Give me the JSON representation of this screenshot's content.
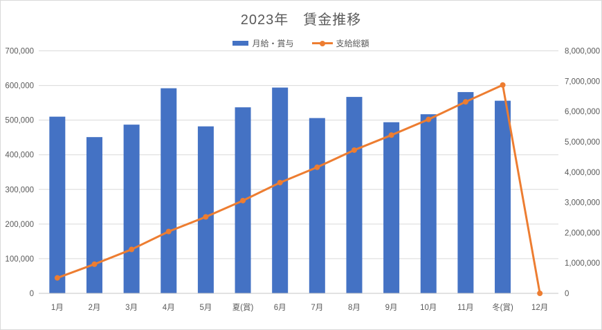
{
  "title": "2023年　賃金推移",
  "legend": {
    "bar_label": "月給・賞与",
    "line_label": "支給総額"
  },
  "colors": {
    "bar": "#4472C4",
    "line": "#ED7D31",
    "grid": "#D9D9D9",
    "axis": "#C6C6C6",
    "text": "#595959"
  },
  "chart_data": {
    "type": "combo-bar-line",
    "title": "2023年　賃金推移",
    "categories": [
      "1月",
      "2月",
      "3月",
      "4月",
      "5月",
      "夏(賞)",
      "6月",
      "7月",
      "8月",
      "9月",
      "10月",
      "11月",
      "冬(賞)",
      "12月"
    ],
    "series": [
      {
        "name": "月給・賞与",
        "type": "bar",
        "yaxis": "left",
        "color": "#4472C4",
        "values": [
          510000,
          451000,
          487000,
          592000,
          482000,
          537000,
          594000,
          506000,
          567000,
          494000,
          517000,
          581000,
          556000,
          null
        ]
      },
      {
        "name": "支給総額",
        "type": "line",
        "yaxis": "right",
        "color": "#ED7D31",
        "values": [
          510000,
          961000,
          1448000,
          2040000,
          2522000,
          3059000,
          3653000,
          4159000,
          4726000,
          5220000,
          5737000,
          6318000,
          6874000,
          0
        ]
      }
    ],
    "left_axis": {
      "min": 0,
      "max": 700000,
      "step": 100000,
      "tick_labels": [
        "0",
        "100,000",
        "200,000",
        "300,000",
        "400,000",
        "500,000",
        "600,000",
        "700,000"
      ]
    },
    "right_axis": {
      "min": 0,
      "max": 8000000,
      "step": 1000000,
      "tick_labels": [
        "0",
        "1,000,000",
        "2,000,000",
        "3,000,000",
        "4,000,000",
        "5,000,000",
        "6,000,000",
        "7,000,000",
        "8,000,000"
      ]
    },
    "grid": true,
    "legend_position": "top"
  }
}
